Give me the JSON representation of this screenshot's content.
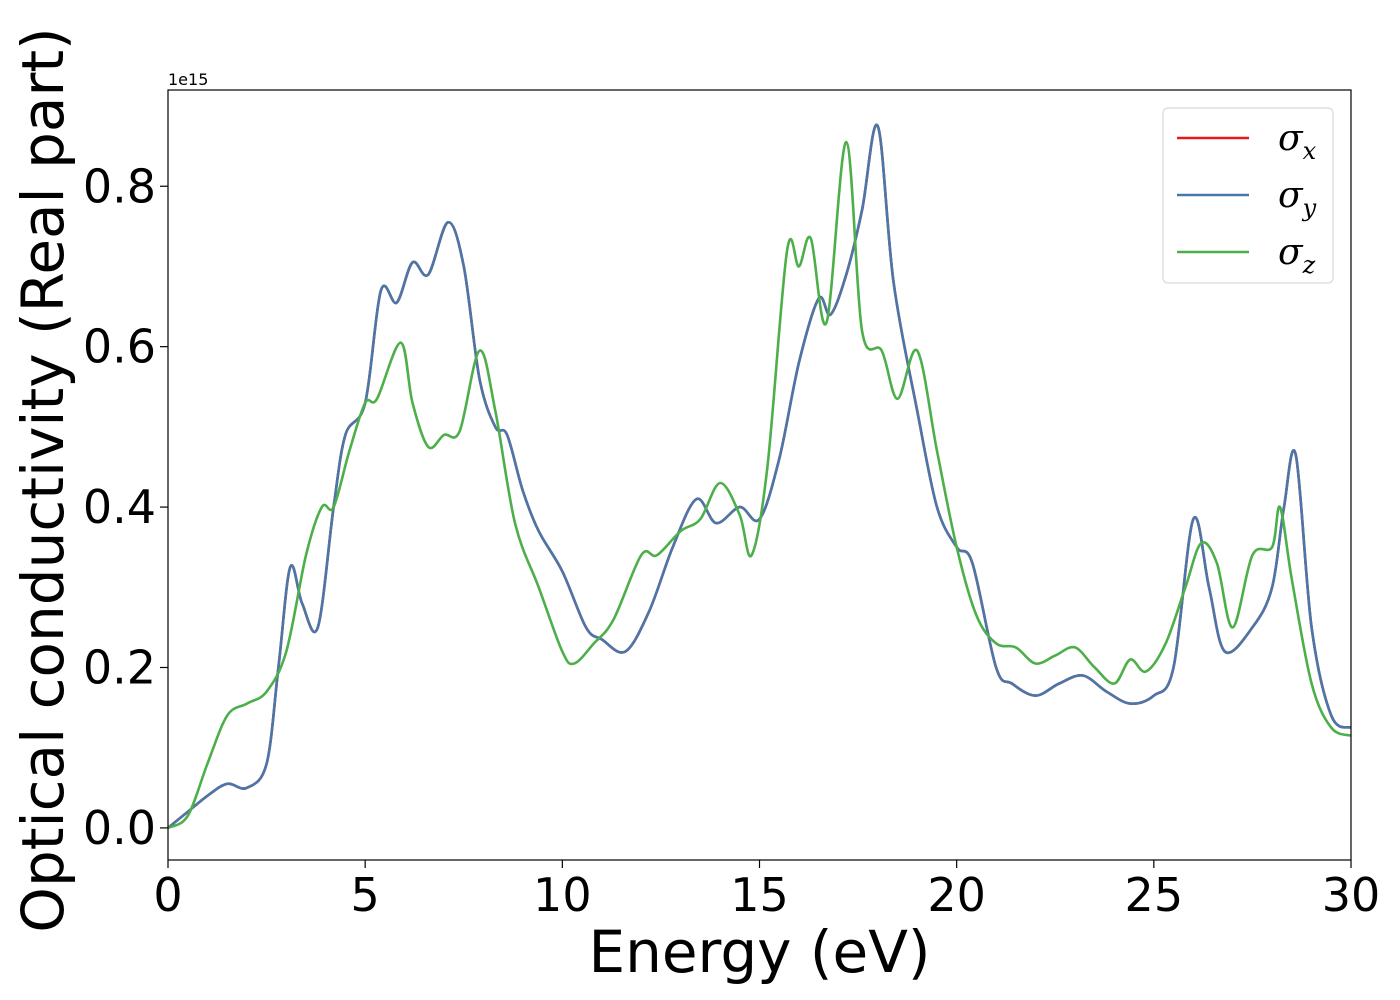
{
  "chart_data": {
    "type": "line",
    "xlabel": "Energy (eV)",
    "ylabel": "Optical conductivity (Real part)",
    "y_offset_label": "1e15",
    "xlim": [
      0,
      30
    ],
    "ylim": [
      -0.04,
      0.92
    ],
    "x_ticks": [
      0,
      5,
      10,
      15,
      20,
      25,
      30
    ],
    "x_tick_labels": [
      "0",
      "5",
      "10",
      "15",
      "20",
      "25",
      "30"
    ],
    "y_ticks": [
      0.0,
      0.2,
      0.4,
      0.6,
      0.8
    ],
    "y_tick_labels": [
      "0.0",
      "0.2",
      "0.4",
      "0.6",
      "0.8"
    ],
    "grid": false,
    "legend_position": "top-right",
    "series": [
      {
        "name": "σ_x",
        "legend_base": "σ",
        "legend_sub": "x",
        "color": "#e41a1c",
        "x": [
          0,
          0.5,
          1.0,
          1.5,
          2.0,
          2.5,
          2.8,
          3.1,
          3.4,
          3.8,
          4.2,
          4.5,
          5.0,
          5.4,
          5.8,
          6.2,
          6.6,
          7.1,
          7.5,
          7.9,
          8.3,
          8.6,
          9.0,
          9.4,
          10.0,
          10.6,
          11.0,
          11.6,
          12.2,
          12.8,
          13.4,
          13.9,
          14.5,
          15.0,
          15.5,
          16.0,
          16.5,
          16.8,
          17.2,
          17.6,
          18.0,
          18.4,
          19.0,
          19.5,
          20.0,
          20.4,
          21.0,
          21.4,
          22.0,
          22.6,
          23.2,
          23.8,
          24.4,
          25.0,
          25.5,
          26.0,
          26.4,
          26.8,
          27.5,
          28.0,
          28.3,
          28.6,
          29.0,
          29.5,
          30.0
        ],
        "y": [
          0.0,
          0.02,
          0.04,
          0.055,
          0.05,
          0.08,
          0.2,
          0.325,
          0.28,
          0.25,
          0.4,
          0.49,
          0.53,
          0.67,
          0.655,
          0.705,
          0.69,
          0.755,
          0.7,
          0.56,
          0.5,
          0.49,
          0.42,
          0.37,
          0.32,
          0.25,
          0.235,
          0.22,
          0.27,
          0.35,
          0.41,
          0.38,
          0.4,
          0.385,
          0.46,
          0.58,
          0.66,
          0.64,
          0.69,
          0.77,
          0.875,
          0.68,
          0.52,
          0.4,
          0.35,
          0.33,
          0.2,
          0.18,
          0.165,
          0.18,
          0.19,
          0.17,
          0.155,
          0.165,
          0.2,
          0.385,
          0.3,
          0.22,
          0.25,
          0.3,
          0.4,
          0.465,
          0.25,
          0.14,
          0.125
        ]
      },
      {
        "name": "σ_y",
        "legend_base": "σ",
        "legend_sub": "y",
        "color": "#4a77aa",
        "x": [
          0,
          0.5,
          1.0,
          1.5,
          2.0,
          2.5,
          2.8,
          3.1,
          3.4,
          3.8,
          4.2,
          4.5,
          5.0,
          5.4,
          5.8,
          6.2,
          6.6,
          7.1,
          7.5,
          7.9,
          8.3,
          8.6,
          9.0,
          9.4,
          10.0,
          10.6,
          11.0,
          11.6,
          12.2,
          12.8,
          13.4,
          13.9,
          14.5,
          15.0,
          15.5,
          16.0,
          16.5,
          16.8,
          17.2,
          17.6,
          18.0,
          18.4,
          19.0,
          19.5,
          20.0,
          20.4,
          21.0,
          21.4,
          22.0,
          22.6,
          23.2,
          23.8,
          24.4,
          25.0,
          25.5,
          26.0,
          26.4,
          26.8,
          27.5,
          28.0,
          28.3,
          28.6,
          29.0,
          29.5,
          30.0
        ],
        "y": [
          0.0,
          0.02,
          0.04,
          0.055,
          0.05,
          0.08,
          0.2,
          0.325,
          0.28,
          0.25,
          0.4,
          0.49,
          0.53,
          0.67,
          0.655,
          0.705,
          0.69,
          0.755,
          0.7,
          0.56,
          0.5,
          0.49,
          0.42,
          0.37,
          0.32,
          0.25,
          0.235,
          0.22,
          0.27,
          0.35,
          0.41,
          0.38,
          0.4,
          0.385,
          0.46,
          0.58,
          0.66,
          0.64,
          0.69,
          0.77,
          0.875,
          0.68,
          0.52,
          0.4,
          0.35,
          0.33,
          0.2,
          0.18,
          0.165,
          0.18,
          0.19,
          0.17,
          0.155,
          0.165,
          0.2,
          0.385,
          0.3,
          0.22,
          0.25,
          0.3,
          0.4,
          0.465,
          0.25,
          0.14,
          0.125
        ]
      },
      {
        "name": "σ_z",
        "legend_base": "σ",
        "legend_sub": "z",
        "color": "#4daf4a",
        "x": [
          0,
          0.5,
          1.0,
          1.5,
          2.0,
          2.5,
          3.0,
          3.5,
          3.9,
          4.2,
          4.6,
          5.0,
          5.3,
          5.9,
          6.2,
          6.6,
          7.0,
          7.4,
          7.9,
          8.3,
          8.8,
          9.4,
          10.0,
          10.3,
          10.8,
          11.3,
          12.0,
          12.4,
          13.0,
          13.5,
          14.0,
          14.5,
          14.8,
          15.2,
          15.7,
          16.0,
          16.3,
          16.7,
          17.2,
          17.6,
          18.1,
          18.5,
          19.0,
          19.5,
          20.0,
          20.5,
          21.0,
          21.5,
          22.0,
          22.5,
          23.0,
          23.5,
          24.0,
          24.4,
          24.8,
          25.3,
          25.8,
          26.2,
          26.6,
          27.0,
          27.5,
          28.0,
          28.2,
          28.5,
          29.0,
          29.5,
          30.0
        ],
        "y": [
          0.0,
          0.015,
          0.08,
          0.14,
          0.155,
          0.17,
          0.22,
          0.34,
          0.4,
          0.4,
          0.47,
          0.53,
          0.535,
          0.605,
          0.53,
          0.475,
          0.49,
          0.495,
          0.595,
          0.52,
          0.38,
          0.3,
          0.22,
          0.205,
          0.23,
          0.26,
          0.34,
          0.34,
          0.37,
          0.385,
          0.43,
          0.39,
          0.34,
          0.45,
          0.72,
          0.7,
          0.735,
          0.63,
          0.855,
          0.62,
          0.595,
          0.535,
          0.595,
          0.47,
          0.35,
          0.265,
          0.23,
          0.225,
          0.205,
          0.215,
          0.225,
          0.2,
          0.18,
          0.21,
          0.195,
          0.23,
          0.3,
          0.355,
          0.33,
          0.25,
          0.34,
          0.35,
          0.4,
          0.31,
          0.18,
          0.125,
          0.115
        ]
      }
    ]
  }
}
